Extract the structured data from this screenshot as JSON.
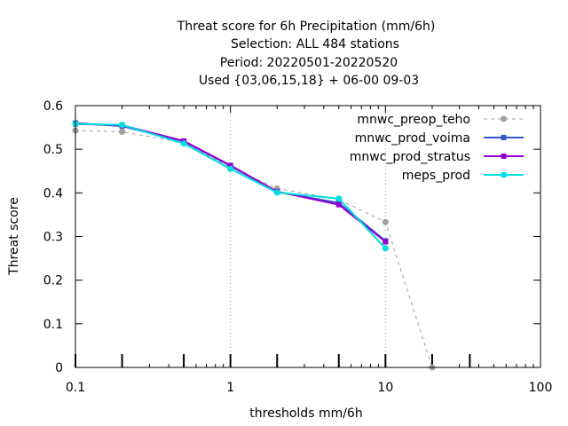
{
  "chart_data": {
    "type": "line",
    "title_lines": [
      "Threat score  for 6h Precipitation (mm/6h)",
      "Selection: ALL    484 stations",
      "Period: 20220501-20220520",
      "Used {03,06,15,18} + 06-00 09-03"
    ],
    "xlabel": "thresholds mm/6h",
    "ylabel": "Threat score",
    "x_scale": "log",
    "xlim": [
      0.1,
      100
    ],
    "ylim": [
      0,
      0.6
    ],
    "x_ticks": [
      0.1,
      1,
      10,
      100
    ],
    "x_tick_labels": [
      "0.1",
      "1",
      "10",
      "100"
    ],
    "y_ticks": [
      0,
      0.1,
      0.2,
      0.3,
      0.4,
      0.5,
      0.6
    ],
    "y_tick_labels": [
      "0",
      "0.1",
      "0.2",
      "0.3",
      "0.4",
      "0.5",
      "0.6"
    ],
    "threshold_marks": [
      0.1,
      0.2,
      0.5,
      1,
      2,
      5,
      10,
      20,
      35
    ],
    "grid_x": [
      1,
      10
    ],
    "legend_position": "top-right",
    "series": [
      {
        "name": "mnwc_preop_teho",
        "color": "#a0a0a0",
        "dashed": true,
        "marker": "circle",
        "x": [
          0.1,
          0.2,
          0.5,
          1,
          2,
          5,
          10,
          20
        ],
        "y": [
          0.543,
          0.54,
          0.515,
          0.458,
          0.41,
          0.385,
          0.333,
          0.0
        ]
      },
      {
        "name": "mnwc_prod_voima",
        "color": "#3355cc",
        "dashed": false,
        "marker": "square",
        "x": [
          0.1,
          0.2,
          0.5,
          1,
          2,
          5,
          10
        ],
        "y": [
          0.56,
          0.553,
          0.518,
          0.462,
          0.402,
          0.377,
          0.29
        ]
      },
      {
        "name": "mnwc_prod_stratus",
        "color": "#9400d3",
        "dashed": false,
        "marker": "square",
        "x": [
          0.1,
          0.2,
          0.5,
          1,
          2,
          5,
          10
        ],
        "y": [
          0.558,
          0.555,
          0.519,
          0.463,
          0.403,
          0.373,
          0.288
        ]
      },
      {
        "name": "meps_prod",
        "color": "#00e0e0",
        "dashed": false,
        "marker": "circle",
        "x": [
          0.1,
          0.2,
          0.5,
          1,
          2,
          5,
          10
        ],
        "y": [
          0.558,
          0.556,
          0.513,
          0.455,
          0.401,
          0.387,
          0.273
        ]
      }
    ]
  }
}
